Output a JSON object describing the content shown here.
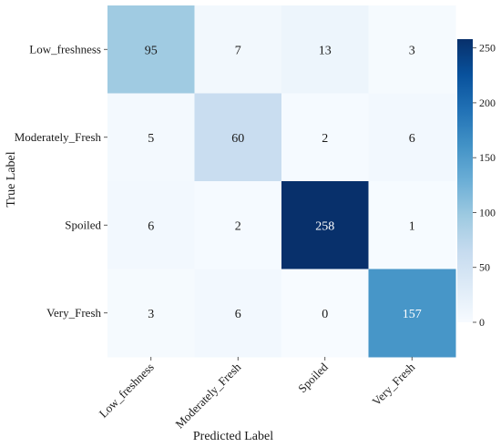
{
  "chart_data": {
    "type": "heatmap",
    "title": "",
    "xlabel": "Predicted Label",
    "ylabel": "True Label",
    "x_categories": [
      "Low_freshness",
      "Moderately_Fresh",
      "Spoiled",
      "Very_Fresh"
    ],
    "y_categories": [
      "Low_freshness",
      "Moderately_Fresh",
      "Spoiled",
      "Very_Fresh"
    ],
    "values": [
      [
        95,
        7,
        13,
        3
      ],
      [
        5,
        60,
        2,
        6
      ],
      [
        6,
        2,
        258,
        1
      ],
      [
        3,
        6,
        0,
        157
      ]
    ],
    "colorbar": {
      "range": [
        0,
        258
      ],
      "ticks": [
        0,
        50,
        100,
        150,
        200,
        250
      ]
    },
    "colormap": "Blues",
    "grid": false
  }
}
